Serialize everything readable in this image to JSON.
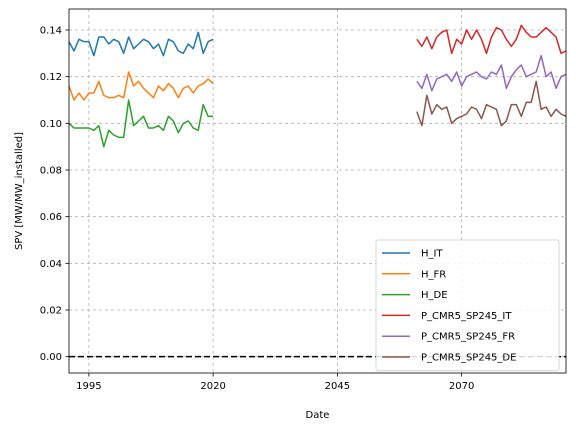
{
  "chart_data": {
    "type": "line",
    "title": "",
    "xlabel": "Date",
    "ylabel": "SPV [MW/MW_installed]",
    "xlim": [
      1991,
      2091
    ],
    "ylim": [
      -0.007,
      0.149
    ],
    "x_ticks": [
      1995,
      2020,
      2045,
      2070
    ],
    "y_ticks": [
      0.0,
      0.02,
      0.04,
      0.06,
      0.08,
      0.1,
      0.12,
      0.14
    ],
    "y_tick_labels": [
      "0.00",
      "0.02",
      "0.04",
      "0.06",
      "0.08",
      "0.10",
      "0.12",
      "0.14"
    ],
    "grid": true,
    "legend_position": "lower right",
    "reference_line": {
      "y": 0.0,
      "style": "dashed",
      "color": "#000000"
    },
    "series": [
      {
        "name": "H_IT",
        "color": "#1f77b4",
        "x": [
          1991,
          1992,
          1993,
          1994,
          1995,
          1996,
          1997,
          1998,
          1999,
          2000,
          2001,
          2002,
          2003,
          2004,
          2005,
          2006,
          2007,
          2008,
          2009,
          2010,
          2011,
          2012,
          2013,
          2014,
          2015,
          2016,
          2017,
          2018,
          2019,
          2020
        ],
        "values": [
          0.135,
          0.131,
          0.136,
          0.135,
          0.135,
          0.129,
          0.137,
          0.137,
          0.134,
          0.136,
          0.135,
          0.13,
          0.137,
          0.132,
          0.134,
          0.136,
          0.135,
          0.132,
          0.134,
          0.129,
          0.136,
          0.135,
          0.131,
          0.13,
          0.134,
          0.132,
          0.139,
          0.13,
          0.135,
          0.136
        ]
      },
      {
        "name": "H_FR",
        "color": "#ff7f0e",
        "x": [
          1991,
          1992,
          1993,
          1994,
          1995,
          1996,
          1997,
          1998,
          1999,
          2000,
          2001,
          2002,
          2003,
          2004,
          2005,
          2006,
          2007,
          2008,
          2009,
          2010,
          2011,
          2012,
          2013,
          2014,
          2015,
          2016,
          2017,
          2018,
          2019,
          2020
        ],
        "values": [
          0.116,
          0.11,
          0.113,
          0.11,
          0.113,
          0.113,
          0.118,
          0.112,
          0.111,
          0.111,
          0.112,
          0.111,
          0.122,
          0.116,
          0.118,
          0.115,
          0.113,
          0.111,
          0.116,
          0.114,
          0.117,
          0.115,
          0.111,
          0.115,
          0.116,
          0.113,
          0.116,
          0.117,
          0.119,
          0.117
        ]
      },
      {
        "name": "H_DE",
        "color": "#2ca02c",
        "x": [
          1991,
          1992,
          1993,
          1994,
          1995,
          1996,
          1997,
          1998,
          1999,
          2000,
          2001,
          2002,
          2003,
          2004,
          2005,
          2006,
          2007,
          2008,
          2009,
          2010,
          2011,
          2012,
          2013,
          2014,
          2015,
          2016,
          2017,
          2018,
          2019,
          2020
        ],
        "values": [
          0.1,
          0.098,
          0.098,
          0.098,
          0.098,
          0.097,
          0.099,
          0.09,
          0.097,
          0.095,
          0.094,
          0.094,
          0.11,
          0.099,
          0.101,
          0.103,
          0.098,
          0.098,
          0.099,
          0.097,
          0.103,
          0.101,
          0.096,
          0.1,
          0.101,
          0.098,
          0.097,
          0.108,
          0.103,
          0.103
        ]
      },
      {
        "name": "P_CMR5_SP245_IT",
        "color": "#d62728",
        "x": [
          2061,
          2062,
          2063,
          2064,
          2065,
          2066,
          2067,
          2068,
          2069,
          2070,
          2071,
          2072,
          2073,
          2074,
          2075,
          2076,
          2077,
          2078,
          2079,
          2080,
          2081,
          2082,
          2083,
          2084,
          2085,
          2086,
          2087,
          2088,
          2089,
          2090,
          2091
        ],
        "values": [
          0.136,
          0.133,
          0.137,
          0.132,
          0.137,
          0.139,
          0.14,
          0.13,
          0.136,
          0.134,
          0.14,
          0.136,
          0.14,
          0.136,
          0.13,
          0.137,
          0.141,
          0.14,
          0.136,
          0.133,
          0.136,
          0.142,
          0.139,
          0.137,
          0.137,
          0.139,
          0.141,
          0.139,
          0.137,
          0.13,
          0.131
        ]
      },
      {
        "name": "P_CMR5_SP245_FR",
        "color": "#9467bd",
        "x": [
          2061,
          2062,
          2063,
          2064,
          2065,
          2066,
          2067,
          2068,
          2069,
          2070,
          2071,
          2072,
          2073,
          2074,
          2075,
          2076,
          2077,
          2078,
          2079,
          2080,
          2081,
          2082,
          2083,
          2084,
          2085,
          2086,
          2087,
          2088,
          2089,
          2090,
          2091
        ],
        "values": [
          0.118,
          0.115,
          0.121,
          0.114,
          0.119,
          0.12,
          0.121,
          0.118,
          0.122,
          0.116,
          0.12,
          0.121,
          0.122,
          0.12,
          0.119,
          0.122,
          0.121,
          0.125,
          0.115,
          0.12,
          0.123,
          0.125,
          0.12,
          0.121,
          0.122,
          0.129,
          0.12,
          0.122,
          0.115,
          0.12,
          0.121
        ]
      },
      {
        "name": "P_CMR5_SP245_DE",
        "color": "#8c564b",
        "x": [
          2061,
          2062,
          2063,
          2064,
          2065,
          2066,
          2067,
          2068,
          2069,
          2070,
          2071,
          2072,
          2073,
          2074,
          2075,
          2076,
          2077,
          2078,
          2079,
          2080,
          2081,
          2082,
          2083,
          2084,
          2085,
          2086,
          2087,
          2088,
          2089,
          2090,
          2091
        ],
        "values": [
          0.105,
          0.099,
          0.112,
          0.104,
          0.108,
          0.106,
          0.107,
          0.1,
          0.102,
          0.103,
          0.104,
          0.107,
          0.106,
          0.102,
          0.108,
          0.107,
          0.106,
          0.099,
          0.101,
          0.108,
          0.108,
          0.103,
          0.109,
          0.109,
          0.118,
          0.106,
          0.107,
          0.103,
          0.106,
          0.104,
          0.103
        ]
      }
    ]
  }
}
